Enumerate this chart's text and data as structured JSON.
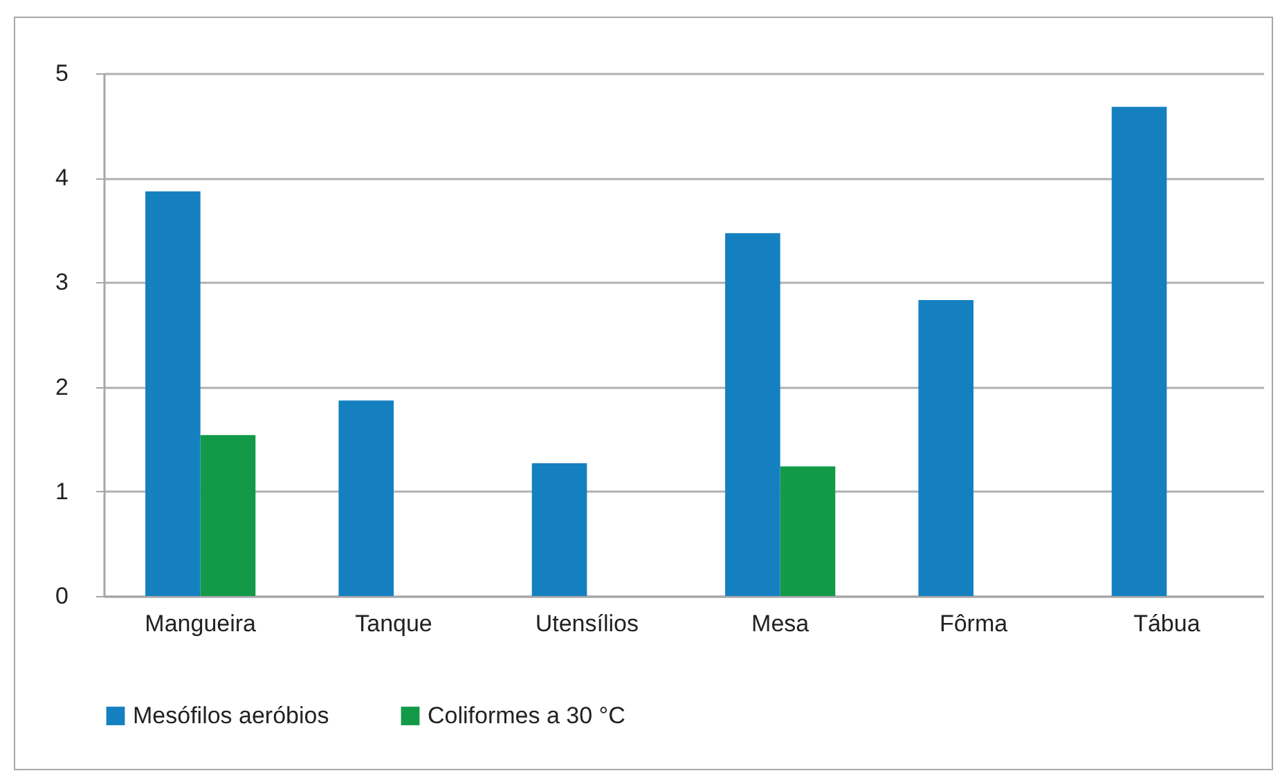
{
  "chart_data": {
    "type": "bar",
    "categories": [
      "Mangueira",
      "Tanque",
      "Utensílios",
      "Mesa",
      "Fôrma",
      "Tábua"
    ],
    "series": [
      {
        "name": "Mesófilos aeróbios",
        "color": "#1580c0",
        "values": [
          3.87,
          1.87,
          1.27,
          3.47,
          2.83,
          4.68
        ]
      },
      {
        "name": "Coliformes a 30  °C",
        "color": "#129a49",
        "values": [
          1.54,
          null,
          null,
          1.24,
          null,
          null
        ]
      }
    ],
    "ylim": [
      0,
      5
    ],
    "yticks": [
      0,
      1,
      2,
      3,
      4,
      5
    ],
    "grid": "y",
    "legend": "bottom"
  }
}
